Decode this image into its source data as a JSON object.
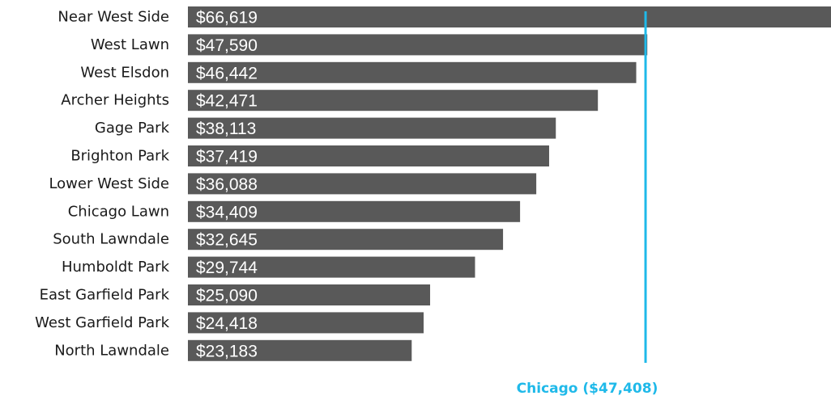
{
  "chart_data": {
    "type": "bar",
    "orientation": "horizontal",
    "categories": [
      "Near West Side",
      "West Lawn",
      "West Elsdon",
      "Archer Heights",
      "Gage Park",
      "Brighton Park",
      "Lower West Side",
      "Chicago Lawn",
      "South Lawndale",
      "Humboldt Park",
      "East Garfield Park",
      "West Garfield Park",
      "North Lawndale"
    ],
    "values": [
      66619,
      47590,
      46442,
      42471,
      38113,
      37419,
      36088,
      34409,
      32645,
      29744,
      25090,
      24418,
      23183
    ],
    "value_labels": [
      "$66,619",
      "$47,590",
      "$46,442",
      "$42,471",
      "$38,113",
      "$37,419",
      "$36,088",
      "$34,409",
      "$32,645",
      "$29,744",
      "$25,090",
      "$24,418",
      "$23,183"
    ],
    "reference_line": {
      "label": "Chicago ($47,408)",
      "value": 47408
    },
    "xlim": [
      0,
      66619
    ],
    "grid": false,
    "legend": "none",
    "colors": {
      "bar": "#595959",
      "bar_text": "#ffffff",
      "reference": "#1fb9e9",
      "label": "#1a1a1a"
    }
  }
}
